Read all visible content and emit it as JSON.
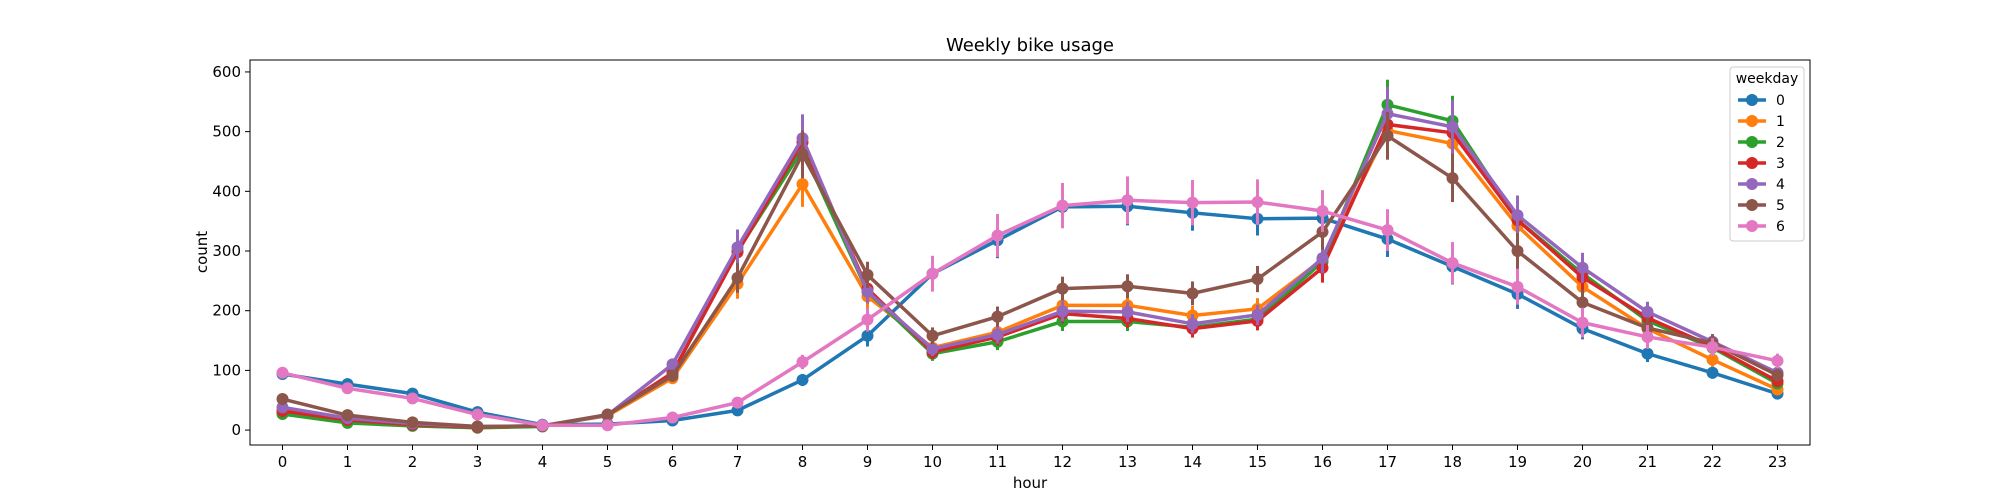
{
  "chart_data": {
    "type": "line",
    "title": "Weekly bike usage",
    "xlabel": "hour",
    "ylabel": "count",
    "x": [
      0,
      1,
      2,
      3,
      4,
      5,
      6,
      7,
      8,
      9,
      10,
      11,
      12,
      13,
      14,
      15,
      16,
      17,
      18,
      19,
      20,
      21,
      22,
      23
    ],
    "ylim": [
      -25,
      620
    ],
    "yticks": [
      0,
      100,
      200,
      300,
      400,
      500,
      600
    ],
    "grid": false,
    "legend": {
      "title": "weekday",
      "placement": "top-right"
    },
    "series": [
      {
        "name": "0",
        "color": "#1f77b4",
        "values": [
          94,
          77,
          61,
          30,
          9,
          10,
          16,
          33,
          84,
          158,
          262,
          318,
          374,
          375,
          364,
          354,
          355,
          320,
          274,
          228,
          170,
          128,
          96,
          61
        ],
        "err": [
          4,
          4,
          4,
          3,
          2,
          2,
          3,
          5,
          10,
          18,
          25,
          30,
          32,
          32,
          30,
          28,
          28,
          30,
          30,
          25,
          18,
          14,
          10,
          8
        ]
      },
      {
        "name": "1",
        "color": "#ff7f0e",
        "values": [
          30,
          15,
          8,
          4,
          7,
          24,
          87,
          245,
          412,
          224,
          138,
          164,
          209,
          209,
          192,
          203,
          286,
          502,
          480,
          342,
          240,
          170,
          118,
          68
        ],
        "err": [
          4,
          3,
          2,
          2,
          2,
          4,
          10,
          25,
          38,
          20,
          12,
          15,
          18,
          18,
          16,
          18,
          25,
          40,
          40,
          30,
          22,
          16,
          12,
          8
        ]
      },
      {
        "name": "2",
        "color": "#2ca02c",
        "values": [
          27,
          12,
          7,
          4,
          6,
          25,
          95,
          300,
          470,
          232,
          128,
          148,
          182,
          182,
          172,
          186,
          282,
          545,
          518,
          352,
          262,
          183,
          138,
          78
        ],
        "err": [
          4,
          3,
          2,
          2,
          2,
          4,
          10,
          28,
          40,
          20,
          12,
          14,
          16,
          16,
          15,
          16,
          25,
          42,
          42,
          32,
          24,
          16,
          12,
          8
        ]
      },
      {
        "name": "3",
        "color": "#d62728",
        "values": [
          32,
          17,
          9,
          5,
          7,
          25,
          96,
          298,
          482,
          237,
          131,
          156,
          195,
          187,
          170,
          183,
          272,
          512,
          498,
          352,
          256,
          188,
          140,
          82
        ],
        "err": [
          4,
          3,
          2,
          2,
          2,
          4,
          10,
          28,
          40,
          20,
          12,
          14,
          16,
          16,
          15,
          16,
          25,
          42,
          40,
          32,
          24,
          16,
          12,
          8
        ]
      },
      {
        "name": "4",
        "color": "#9467bd",
        "values": [
          38,
          20,
          11,
          6,
          7,
          25,
          110,
          306,
          489,
          232,
          136,
          160,
          199,
          198,
          178,
          193,
          288,
          530,
          508,
          360,
          272,
          198,
          148,
          96
        ],
        "err": [
          5,
          3,
          2,
          2,
          2,
          4,
          10,
          30,
          40,
          20,
          12,
          15,
          17,
          17,
          16,
          17,
          25,
          45,
          45,
          33,
          25,
          17,
          13,
          10
        ]
      },
      {
        "name": "5",
        "color": "#8c564b",
        "values": [
          52,
          25,
          13,
          6,
          7,
          26,
          91,
          255,
          462,
          260,
          158,
          190,
          237,
          241,
          229,
          253,
          332,
          493,
          422,
          300,
          214,
          171,
          146,
          92
        ],
        "err": [
          6,
          4,
          3,
          2,
          2,
          4,
          10,
          25,
          40,
          22,
          14,
          17,
          20,
          20,
          20,
          22,
          30,
          40,
          40,
          30,
          22,
          18,
          14,
          10
        ]
      },
      {
        "name": "6",
        "color": "#e377c2",
        "values": [
          96,
          70,
          53,
          26,
          8,
          8,
          21,
          46,
          114,
          185,
          262,
          326,
          376,
          385,
          381,
          382,
          367,
          335,
          280,
          240,
          180,
          156,
          139,
          116
        ],
        "err": [
          6,
          5,
          4,
          4,
          2,
          2,
          3,
          5,
          12,
          20,
          30,
          36,
          38,
          40,
          38,
          38,
          35,
          35,
          35,
          30,
          25,
          20,
          15,
          12
        ]
      }
    ]
  }
}
